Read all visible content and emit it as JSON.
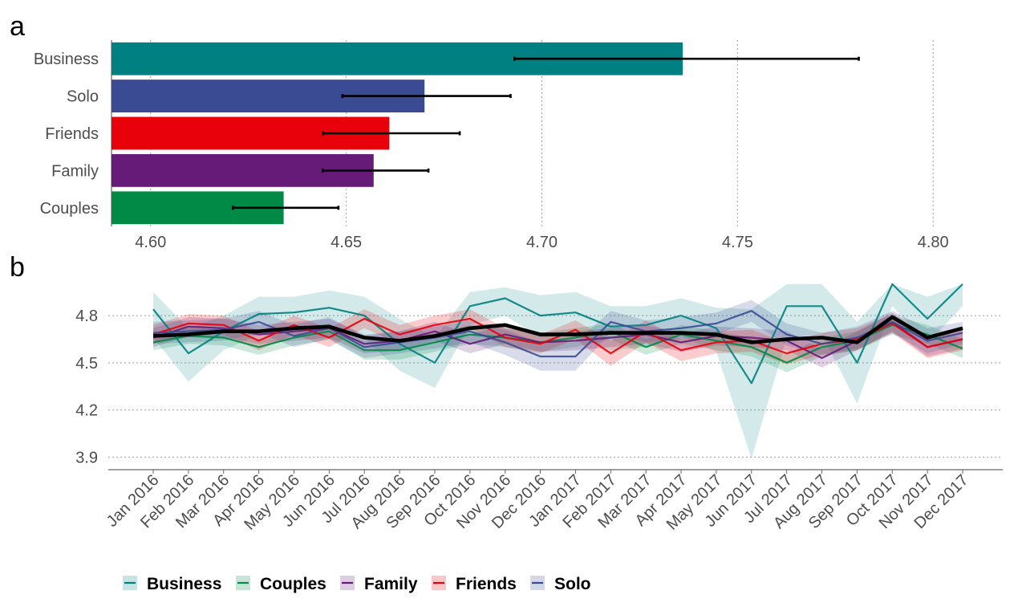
{
  "panels": {
    "a": "a",
    "b": "b"
  },
  "colors": {
    "Business": "#008080",
    "Solo": "#3a4a93",
    "Friends": "#e8000a",
    "Family": "#661b78",
    "Couples": "#008a45",
    "overall": "#000000"
  },
  "chart_data": [
    {
      "type": "bar",
      "orientation": "horizontal",
      "panel": "a",
      "categories": [
        "Business",
        "Solo",
        "Friends",
        "Family",
        "Couples"
      ],
      "values": [
        4.736,
        4.67,
        4.661,
        4.657,
        4.634
      ],
      "error_low": [
        4.693,
        4.649,
        4.644,
        4.644,
        4.621
      ],
      "error_high": [
        4.781,
        4.692,
        4.679,
        4.671,
        4.648
      ],
      "xlim": [
        4.59,
        4.81
      ],
      "xticks": [
        4.6,
        4.65,
        4.7,
        4.75,
        4.8
      ],
      "xtick_labels": [
        "4.60",
        "4.65",
        "4.70",
        "4.75",
        "4.80"
      ],
      "grid": "vertical dotted"
    },
    {
      "type": "line",
      "panel": "b",
      "x": [
        "Jan 2016",
        "Feb 2016",
        "Mar 2016",
        "Apr 2016",
        "May 2016",
        "Jun 2016",
        "Jul 2016",
        "Aug 2016",
        "Sep 2016",
        "Oct 2016",
        "Nov 2016",
        "Dec 2016",
        "Jan 2017",
        "Feb 2017",
        "Mar 2017",
        "Apr 2017",
        "May 2017",
        "Jun 2017",
        "Jul 2017",
        "Aug 2017",
        "Sep 2017",
        "Oct 2017",
        "Nov 2017",
        "Dec 2017"
      ],
      "ylim": [
        3.82,
        5.02
      ],
      "yticks": [
        3.9,
        4.2,
        4.5,
        4.8
      ],
      "ytick_labels": [
        "3.9",
        "4.2",
        "4.5",
        "4.8"
      ],
      "series": [
        {
          "name": "Business",
          "values": [
            4.84,
            4.56,
            4.7,
            4.81,
            4.82,
            4.85,
            4.8,
            4.62,
            4.5,
            4.86,
            4.91,
            4.8,
            4.82,
            4.73,
            4.74,
            4.8,
            4.72,
            4.37,
            4.86,
            4.86,
            4.5,
            5.0,
            4.78,
            5.0
          ],
          "lower": [
            4.66,
            4.38,
            4.58,
            4.68,
            4.7,
            4.72,
            4.65,
            4.45,
            4.34,
            4.74,
            4.8,
            4.66,
            4.68,
            4.58,
            4.6,
            4.67,
            4.57,
            3.89,
            4.66,
            4.68,
            4.24,
            4.86,
            4.62,
            4.86
          ],
          "upper": [
            4.95,
            4.72,
            4.8,
            4.92,
            4.92,
            4.96,
            4.92,
            4.78,
            4.66,
            4.95,
            4.98,
            4.93,
            4.95,
            4.86,
            4.86,
            4.91,
            4.85,
            4.84,
            5.0,
            5.0,
            4.76,
            5.0,
            4.92,
            5.0
          ]
        },
        {
          "name": "Couples",
          "values": [
            4.63,
            4.67,
            4.66,
            4.6,
            4.66,
            4.7,
            4.58,
            4.58,
            4.63,
            4.68,
            4.66,
            4.63,
            4.66,
            4.7,
            4.6,
            4.68,
            4.64,
            4.6,
            4.5,
            4.6,
            4.64,
            4.74,
            4.68,
            4.59
          ],
          "lower": [
            4.58,
            4.62,
            4.61,
            4.55,
            4.61,
            4.65,
            4.52,
            4.52,
            4.57,
            4.62,
            4.6,
            4.57,
            4.6,
            4.65,
            4.55,
            4.62,
            4.58,
            4.54,
            4.44,
            4.54,
            4.58,
            4.68,
            4.62,
            4.53
          ],
          "upper": [
            4.68,
            4.72,
            4.71,
            4.65,
            4.71,
            4.75,
            4.64,
            4.64,
            4.69,
            4.74,
            4.72,
            4.69,
            4.72,
            4.75,
            4.65,
            4.74,
            4.7,
            4.66,
            4.56,
            4.66,
            4.7,
            4.8,
            4.74,
            4.65
          ]
        },
        {
          "name": "Family",
          "values": [
            4.66,
            4.73,
            4.72,
            4.68,
            4.7,
            4.72,
            4.62,
            4.64,
            4.7,
            4.62,
            4.68,
            4.63,
            4.64,
            4.66,
            4.68,
            4.63,
            4.67,
            4.66,
            4.64,
            4.53,
            4.64,
            4.76,
            4.6,
            4.65
          ],
          "lower": [
            4.6,
            4.67,
            4.66,
            4.62,
            4.64,
            4.66,
            4.56,
            4.58,
            4.64,
            4.56,
            4.62,
            4.57,
            4.58,
            4.6,
            4.62,
            4.57,
            4.61,
            4.6,
            4.58,
            4.47,
            4.58,
            4.7,
            4.54,
            4.59
          ],
          "upper": [
            4.72,
            4.79,
            4.78,
            4.74,
            4.76,
            4.78,
            4.68,
            4.7,
            4.76,
            4.68,
            4.74,
            4.69,
            4.7,
            4.72,
            4.74,
            4.69,
            4.73,
            4.72,
            4.7,
            4.59,
            4.7,
            4.82,
            4.66,
            4.71
          ]
        },
        {
          "name": "Friends",
          "values": [
            4.68,
            4.75,
            4.74,
            4.64,
            4.74,
            4.66,
            4.78,
            4.68,
            4.74,
            4.78,
            4.66,
            4.62,
            4.71,
            4.56,
            4.7,
            4.58,
            4.63,
            4.64,
            4.56,
            4.62,
            4.65,
            4.75,
            4.6,
            4.65
          ],
          "lower": [
            4.62,
            4.69,
            4.68,
            4.58,
            4.68,
            4.6,
            4.72,
            4.62,
            4.68,
            4.72,
            4.6,
            4.56,
            4.65,
            4.48,
            4.63,
            4.51,
            4.56,
            4.57,
            4.49,
            4.55,
            4.58,
            4.69,
            4.53,
            4.58
          ],
          "upper": [
            4.74,
            4.81,
            4.8,
            4.7,
            4.8,
            4.72,
            4.84,
            4.74,
            4.8,
            4.84,
            4.72,
            4.68,
            4.77,
            4.64,
            4.77,
            4.65,
            4.7,
            4.71,
            4.63,
            4.69,
            4.72,
            4.81,
            4.67,
            4.72
          ]
        },
        {
          "name": "Solo",
          "values": [
            4.69,
            4.7,
            4.71,
            4.76,
            4.67,
            4.72,
            4.6,
            4.63,
            4.66,
            4.7,
            4.63,
            4.54,
            4.54,
            4.76,
            4.7,
            4.72,
            4.75,
            4.83,
            4.68,
            4.62,
            4.66,
            4.76,
            4.64,
            4.69
          ],
          "lower": [
            4.62,
            4.63,
            4.64,
            4.69,
            4.6,
            4.65,
            4.53,
            4.56,
            4.59,
            4.63,
            4.55,
            4.45,
            4.45,
            4.69,
            4.63,
            4.65,
            4.68,
            4.76,
            4.61,
            4.55,
            4.59,
            4.69,
            4.56,
            4.62
          ],
          "upper": [
            4.76,
            4.77,
            4.78,
            4.83,
            4.74,
            4.79,
            4.67,
            4.7,
            4.73,
            4.77,
            4.71,
            4.63,
            4.63,
            4.83,
            4.77,
            4.79,
            4.82,
            4.9,
            4.75,
            4.69,
            4.73,
            4.83,
            4.72,
            4.76
          ]
        },
        {
          "name": "Overall",
          "values": [
            4.67,
            4.68,
            4.7,
            4.7,
            4.72,
            4.73,
            4.66,
            4.64,
            4.67,
            4.72,
            4.74,
            4.68,
            4.68,
            4.69,
            4.69,
            4.69,
            4.68,
            4.63,
            4.65,
            4.66,
            4.63,
            4.79,
            4.66,
            4.72
          ]
        }
      ],
      "grid": "horizontal dotted"
    }
  ],
  "legend": {
    "placement": "bottom-left",
    "items": [
      "Business",
      "Couples",
      "Family",
      "Friends",
      "Solo"
    ]
  }
}
